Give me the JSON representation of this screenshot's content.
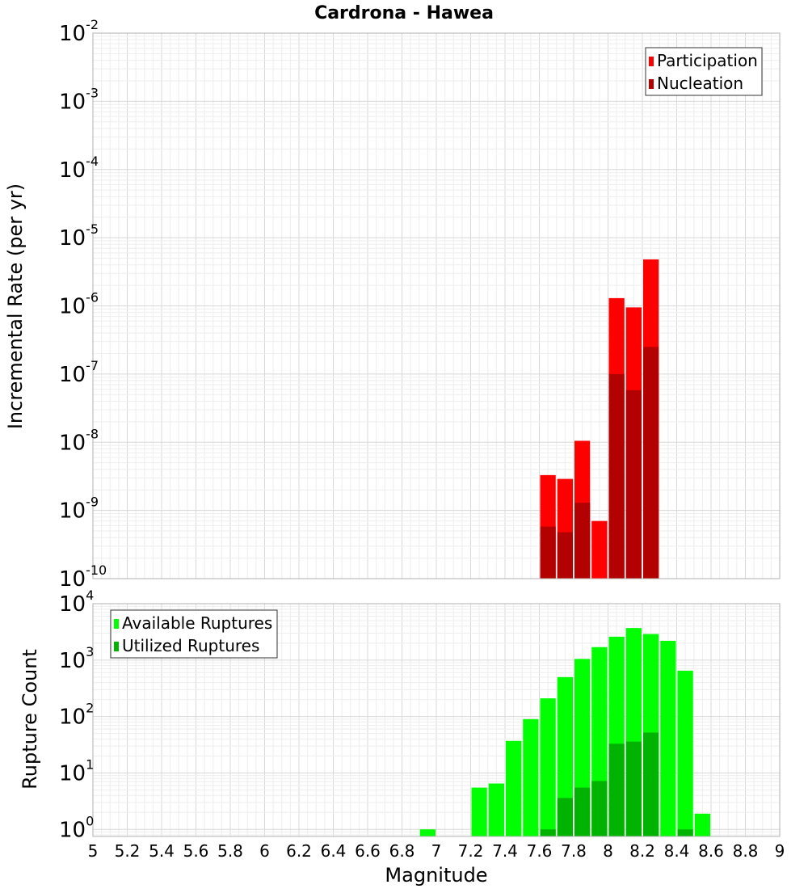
{
  "chart_data": {
    "title": "Cardrona - Hawea",
    "xlabel": "Magnitude",
    "xlim": [
      5,
      9
    ],
    "x_ticks": [
      "5",
      "5.2",
      "5.4",
      "5.6",
      "5.8",
      "6",
      "6.2",
      "6.4",
      "6.6",
      "6.8",
      "7",
      "7.2",
      "7.4",
      "7.6",
      "7.8",
      "8",
      "8.2",
      "8.4",
      "8.6",
      "8.8",
      "9"
    ],
    "panels": [
      {
        "type": "bar",
        "ylabel": "Incremental Rate (per yr)",
        "yscale": "log",
        "ylim": [
          1e-10,
          0.01
        ],
        "y_tick_exponents": [
          "-2",
          "-3",
          "-4",
          "-5",
          "-6",
          "-7",
          "-8",
          "-9",
          "-10"
        ],
        "legend_position": "top-right",
        "bin_width": 0.1,
        "x": [
          7.65,
          7.75,
          7.85,
          7.95,
          8.05,
          8.15,
          8.25
        ],
        "series": [
          {
            "name": "Participation",
            "color": "#ff0000",
            "values": [
              3.3e-09,
              2.9e-09,
              1.05e-08,
              7e-10,
              1.3e-06,
              9.5e-07,
              4.8e-06
            ]
          },
          {
            "name": "Nucleation",
            "color": "#b30000",
            "values": [
              5.8e-10,
              4.8e-10,
              1.3e-09,
              null,
              1e-07,
              5.8e-08,
              2.5e-07
            ]
          }
        ]
      },
      {
        "type": "bar",
        "ylabel": "Rupture Count",
        "yscale": "log",
        "ylim": [
          0.75,
          10000
        ],
        "y_tick_exponents": [
          "4",
          "3",
          "2",
          "1",
          "0"
        ],
        "legend_position": "top-left",
        "bin_width": 0.1,
        "x": [
          6.95,
          7.25,
          7.35,
          7.45,
          7.55,
          7.65,
          7.75,
          7.85,
          7.95,
          8.05,
          8.15,
          8.25,
          8.35,
          8.45,
          8.55
        ],
        "series": [
          {
            "name": "Available Ruptures",
            "color": "#00ff00",
            "values": [
              1,
              5.5,
              6.5,
              37,
              90,
              210,
              500,
              1050,
              1700,
              2600,
              3700,
              2900,
              2200,
              650,
              1.9
            ]
          },
          {
            "name": "Utilized Ruptures",
            "color": "#00b300",
            "values": [
              null,
              null,
              null,
              null,
              null,
              1,
              3.6,
              5.5,
              7.2,
              33,
              36,
              52,
              null,
              1,
              null
            ]
          }
        ]
      }
    ]
  }
}
